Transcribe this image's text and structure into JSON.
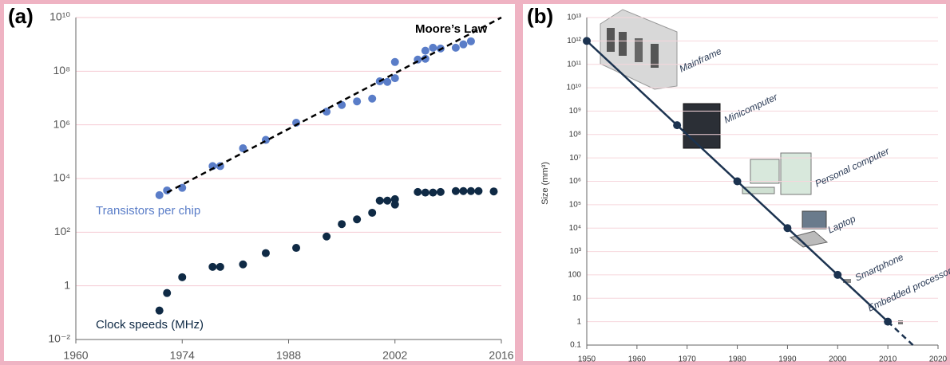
{
  "chart_data": [
    {
      "type": "scatter",
      "panel_label": "(a)",
      "ylog": true,
      "grid": true,
      "xlim": [
        1960,
        2016
      ],
      "xticks": [
        1960,
        1974,
        1988,
        2002,
        2016
      ],
      "ylim": [
        0.01,
        10000000000
      ],
      "yticks": [
        {
          "value": 0.01,
          "label": "10⁻²"
        },
        1,
        {
          "value": 100,
          "label": "10²"
        },
        {
          "value": 10000,
          "label": "10⁴"
        },
        {
          "value": 1000000,
          "label": "10⁶"
        },
        {
          "value": 100000000,
          "label": "10⁸"
        },
        {
          "value": 10000000000,
          "label": "10¹⁰"
        }
      ],
      "series": [
        {
          "name": "Transistors per chip",
          "color": "#5a7dc8",
          "mode": "markers",
          "x": [
            1971,
            1972,
            1974,
            1978,
            1979,
            1982,
            1985,
            1989,
            1993,
            1995,
            1997,
            1999,
            2000,
            2001,
            2002,
            2002,
            2005,
            2006,
            2006,
            2007,
            2008,
            2010,
            2011,
            2012
          ],
          "values": [
            2400,
            3600,
            4500,
            29000,
            29000,
            134000,
            275000,
            1200000,
            3100000,
            5500000,
            7500000,
            9500000,
            42000000,
            40000000,
            55000000,
            220000000,
            270000000,
            290000000,
            580000000,
            750000000,
            700000000,
            750000000,
            1000000000,
            1300000000
          ]
        },
        {
          "name": "Clock speeds (MHz)",
          "color": "#0f2a45",
          "mode": "markers",
          "x": [
            1971,
            1972,
            1974,
            1978,
            1979,
            1982,
            1985,
            1989,
            1993,
            1995,
            1997,
            1999,
            2000,
            2001,
            2002,
            2002,
            2005,
            2006,
            2007,
            2008,
            2010,
            2011,
            2012,
            2013,
            2015
          ],
          "values": [
            0.12,
            0.54,
            2.1,
            5.1,
            5.1,
            6.3,
            16.6,
            26,
            69,
            200,
            300,
            530,
            1500,
            1500,
            1070,
            1700,
            3150,
            3000,
            3000,
            3150,
            3400,
            3400,
            3400,
            3400,
            3300
          ]
        },
        {
          "name": "Moore’s Law",
          "color": "#000000",
          "mode": "dashed-line",
          "x": [
            1972,
            2016
          ],
          "values": [
            3000,
            10000000000
          ]
        }
      ]
    },
    {
      "type": "line",
      "panel_label": "(b)",
      "y_label": "Size (mm³)",
      "ylog": true,
      "grid": true,
      "xlim": [
        1950,
        2020
      ],
      "xticks": [
        1950,
        1960,
        1970,
        1980,
        1990,
        2000,
        2010,
        2020
      ],
      "ylim": [
        0.1,
        10000000000000
      ],
      "yticks": [
        0.1,
        1,
        10,
        100,
        {
          "value": 1000,
          "label": "10³"
        },
        {
          "value": 10000,
          "label": "10⁴"
        },
        {
          "value": 100000,
          "label": "10⁵"
        },
        {
          "value": 1000000,
          "label": "10⁶"
        },
        {
          "value": 10000000,
          "label": "10⁷"
        },
        {
          "value": 100000000,
          "label": "10⁸"
        },
        {
          "value": 1000000000,
          "label": "10⁹"
        },
        {
          "value": 10000000000,
          "label": "10¹⁰"
        },
        {
          "value": 100000000000,
          "label": "10¹¹"
        },
        {
          "value": 1000000000000,
          "label": "10¹²"
        },
        {
          "value": 10000000000000,
          "label": "10¹³"
        }
      ],
      "series": [
        {
          "color": "#1c3350",
          "mode": "line-markers",
          "x": [
            1950,
            1968,
            1980,
            1990,
            2000,
            2010
          ],
          "values": [
            1000000000000,
            250000000,
            1000000,
            10000,
            100,
            1
          ],
          "point_labels": [
            "Mainframe",
            "Minicomputer",
            "Personal computer",
            "Laptop",
            "Smartphone",
            "Embedded processors"
          ]
        },
        {
          "color": "#1c3350",
          "mode": "dashed-line",
          "x": [
            2010,
            2015
          ],
          "values": [
            1,
            0.1
          ]
        }
      ]
    }
  ]
}
